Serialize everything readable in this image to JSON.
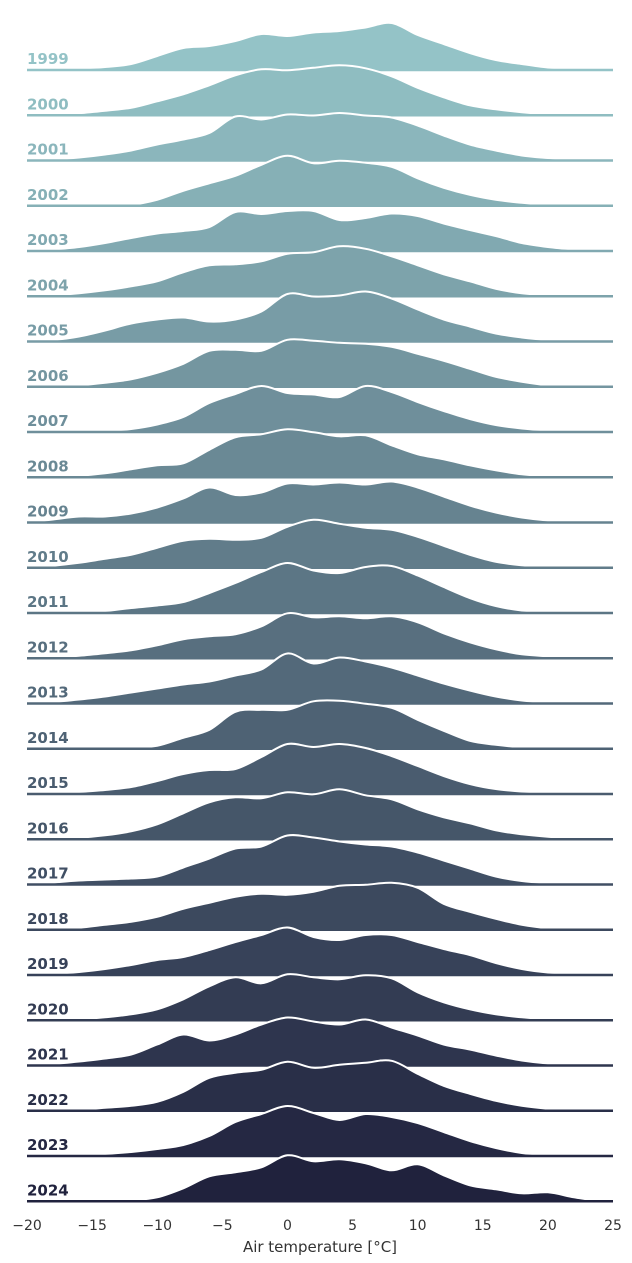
{
  "chart_data": {
    "type": "ridgeline",
    "title": "",
    "xlabel": "Air temperature [°C]",
    "ylabel": "",
    "xlim": [
      -20,
      25
    ],
    "xticks": [
      -20,
      -15,
      -10,
      -5,
      0,
      5,
      10,
      15,
      20,
      25
    ],
    "xtick_labels": [
      "−20",
      "−15",
      "−10",
      "−5",
      "0",
      "5",
      "10",
      "15",
      "20",
      "25"
    ],
    "density_x": [
      -20,
      -18,
      -16,
      -14,
      -12,
      -10,
      -8,
      -6,
      -4,
      -2,
      0,
      2,
      4,
      6,
      8,
      10,
      12,
      14,
      16,
      18,
      20,
      22,
      24
    ],
    "series": [
      {
        "name": "1999",
        "density": [
          0.0,
          0.01,
          0.03,
          0.06,
          0.12,
          0.28,
          0.44,
          0.48,
          0.58,
          0.72,
          0.68,
          0.75,
          0.78,
          0.85,
          0.94,
          0.7,
          0.52,
          0.34,
          0.2,
          0.12,
          0.05,
          0.02,
          0.0
        ]
      },
      {
        "name": "2000",
        "density": [
          0.0,
          0.01,
          0.04,
          0.09,
          0.15,
          0.28,
          0.42,
          0.6,
          0.8,
          0.92,
          0.9,
          0.95,
          1.0,
          0.94,
          0.78,
          0.55,
          0.36,
          0.2,
          0.12,
          0.06,
          0.02,
          0.01,
          0.0
        ]
      },
      {
        "name": "2001",
        "density": [
          0.0,
          0.02,
          0.06,
          0.12,
          0.2,
          0.32,
          0.42,
          0.55,
          0.88,
          0.82,
          0.92,
          0.9,
          0.95,
          0.9,
          0.86,
          0.7,
          0.5,
          0.32,
          0.2,
          0.1,
          0.05,
          0.02,
          0.0
        ]
      },
      {
        "name": "2002",
        "density": [
          0.0,
          0.0,
          0.0,
          0.0,
          0.02,
          0.12,
          0.3,
          0.45,
          0.6,
          0.82,
          1.0,
          0.85,
          0.9,
          0.86,
          0.78,
          0.55,
          0.36,
          0.22,
          0.12,
          0.06,
          0.02,
          0.01,
          0.0
        ]
      },
      {
        "name": "2003",
        "density": [
          0.0,
          0.03,
          0.08,
          0.16,
          0.26,
          0.35,
          0.4,
          0.48,
          0.78,
          0.74,
          0.8,
          0.8,
          0.62,
          0.66,
          0.75,
          0.7,
          0.55,
          0.42,
          0.3,
          0.16,
          0.08,
          0.03,
          0.0
        ]
      },
      {
        "name": "2004",
        "density": [
          0.0,
          0.02,
          0.06,
          0.12,
          0.2,
          0.3,
          0.48,
          0.62,
          0.64,
          0.7,
          0.85,
          0.88,
          1.0,
          0.95,
          0.8,
          0.62,
          0.44,
          0.3,
          0.15,
          0.06,
          0.02,
          0.0,
          0.0
        ]
      },
      {
        "name": "2005",
        "density": [
          0.0,
          0.03,
          0.1,
          0.22,
          0.36,
          0.44,
          0.48,
          0.4,
          0.44,
          0.6,
          0.95,
          0.9,
          0.92,
          1.0,
          0.86,
          0.64,
          0.44,
          0.3,
          0.16,
          0.08,
          0.03,
          0.01,
          0.0
        ]
      },
      {
        "name": "2006",
        "density": [
          0.0,
          0.01,
          0.03,
          0.08,
          0.15,
          0.28,
          0.46,
          0.72,
          0.74,
          0.72,
          0.94,
          0.92,
          0.88,
          0.86,
          0.8,
          0.66,
          0.52,
          0.36,
          0.2,
          0.1,
          0.03,
          0.0,
          0.0
        ]
      },
      {
        "name": "2007",
        "density": [
          0.0,
          0.0,
          0.0,
          0.02,
          0.06,
          0.15,
          0.3,
          0.58,
          0.76,
          0.92,
          0.78,
          0.75,
          0.7,
          0.92,
          0.8,
          0.6,
          0.42,
          0.26,
          0.14,
          0.07,
          0.03,
          0.01,
          0.0
        ]
      },
      {
        "name": "2008",
        "density": [
          0.0,
          0.01,
          0.03,
          0.08,
          0.16,
          0.24,
          0.28,
          0.55,
          0.8,
          0.86,
          0.96,
          0.9,
          0.82,
          0.84,
          0.64,
          0.46,
          0.36,
          0.24,
          0.14,
          0.06,
          0.02,
          0.0,
          0.0
        ]
      },
      {
        "name": "2009",
        "density": [
          0.0,
          0.06,
          0.12,
          0.12,
          0.18,
          0.3,
          0.48,
          0.7,
          0.55,
          0.6,
          0.78,
          0.76,
          0.8,
          0.76,
          0.82,
          0.7,
          0.52,
          0.34,
          0.2,
          0.1,
          0.04,
          0.01,
          0.0
        ]
      },
      {
        "name": "2010",
        "density": [
          0.0,
          0.04,
          0.1,
          0.18,
          0.26,
          0.4,
          0.54,
          0.58,
          0.56,
          0.6,
          0.82,
          0.96,
          0.88,
          0.8,
          0.76,
          0.62,
          0.44,
          0.26,
          0.12,
          0.05,
          0.02,
          0.0,
          0.0
        ]
      },
      {
        "name": "2011",
        "density": [
          0.0,
          0.0,
          0.02,
          0.04,
          0.1,
          0.15,
          0.22,
          0.4,
          0.6,
          0.82,
          1.0,
          0.85,
          0.8,
          0.92,
          0.94,
          0.75,
          0.52,
          0.3,
          0.14,
          0.05,
          0.02,
          0.0,
          0.0
        ]
      },
      {
        "name": "2012",
        "density": [
          0.0,
          0.02,
          0.05,
          0.1,
          0.16,
          0.26,
          0.38,
          0.44,
          0.48,
          0.64,
          0.9,
          0.82,
          0.84,
          0.8,
          0.84,
          0.72,
          0.5,
          0.32,
          0.18,
          0.08,
          0.04,
          0.01,
          0.0
        ]
      },
      {
        "name": "2013",
        "density": [
          0.0,
          0.03,
          0.08,
          0.14,
          0.22,
          0.3,
          0.38,
          0.44,
          0.56,
          0.68,
          1.0,
          0.8,
          0.92,
          0.84,
          0.72,
          0.56,
          0.4,
          0.26,
          0.14,
          0.06,
          0.02,
          0.0,
          0.0
        ]
      },
      {
        "name": "2014",
        "density": [
          0.0,
          0.0,
          0.0,
          0.01,
          0.02,
          0.06,
          0.22,
          0.38,
          0.74,
          0.78,
          0.78,
          0.95,
          0.96,
          0.9,
          0.82,
          0.58,
          0.36,
          0.16,
          0.08,
          0.03,
          0.01,
          0.0,
          0.0
        ]
      },
      {
        "name": "2015",
        "density": [
          0.0,
          0.01,
          0.04,
          0.08,
          0.14,
          0.26,
          0.4,
          0.48,
          0.5,
          0.74,
          1.0,
          0.94,
          1.0,
          0.92,
          0.76,
          0.56,
          0.36,
          0.2,
          0.1,
          0.05,
          0.02,
          0.01,
          0.0
        ]
      },
      {
        "name": "2016",
        "density": [
          0.0,
          0.01,
          0.03,
          0.08,
          0.16,
          0.3,
          0.52,
          0.74,
          0.84,
          0.82,
          0.94,
          0.9,
          1.0,
          0.88,
          0.8,
          0.6,
          0.44,
          0.32,
          0.18,
          0.1,
          0.05,
          0.02,
          0.0
        ]
      },
      {
        "name": "2017",
        "density": [
          0.0,
          0.04,
          0.08,
          0.1,
          0.12,
          0.16,
          0.34,
          0.52,
          0.72,
          0.76,
          0.98,
          0.94,
          0.86,
          0.8,
          0.76,
          0.64,
          0.48,
          0.32,
          0.16,
          0.07,
          0.03,
          0.01,
          0.0
        ]
      },
      {
        "name": "2018",
        "density": [
          0.0,
          0.01,
          0.04,
          0.1,
          0.16,
          0.26,
          0.42,
          0.54,
          0.66,
          0.72,
          0.7,
          0.76,
          0.88,
          0.9,
          0.94,
          0.84,
          0.52,
          0.36,
          0.22,
          0.1,
          0.03,
          0.0,
          0.0
        ]
      },
      {
        "name": "2019",
        "density": [
          0.0,
          0.02,
          0.06,
          0.12,
          0.2,
          0.3,
          0.36,
          0.5,
          0.66,
          0.8,
          0.95,
          0.76,
          0.7,
          0.8,
          0.8,
          0.66,
          0.52,
          0.4,
          0.24,
          0.12,
          0.05,
          0.02,
          0.0
        ]
      },
      {
        "name": "2020",
        "density": [
          0.0,
          0.0,
          0.02,
          0.06,
          0.12,
          0.22,
          0.42,
          0.68,
          0.86,
          0.74,
          0.92,
          0.86,
          0.82,
          0.9,
          0.84,
          0.56,
          0.36,
          0.22,
          0.12,
          0.06,
          0.02,
          0.0,
          0.0
        ]
      },
      {
        "name": "2021",
        "density": [
          0.0,
          0.03,
          0.08,
          0.14,
          0.22,
          0.42,
          0.62,
          0.5,
          0.62,
          0.82,
          0.96,
          0.88,
          0.82,
          0.92,
          0.76,
          0.6,
          0.42,
          0.32,
          0.2,
          0.1,
          0.04,
          0.01,
          0.0
        ]
      },
      {
        "name": "2022",
        "density": [
          0.0,
          0.0,
          0.02,
          0.06,
          0.1,
          0.18,
          0.38,
          0.66,
          0.76,
          0.82,
          0.98,
          0.86,
          0.92,
          0.96,
          1.0,
          0.74,
          0.5,
          0.34,
          0.2,
          0.1,
          0.04,
          0.01,
          0.0
        ]
      },
      {
        "name": "2023",
        "density": [
          0.0,
          0.0,
          0.01,
          0.04,
          0.08,
          0.14,
          0.22,
          0.4,
          0.68,
          0.84,
          1.0,
          0.86,
          0.72,
          0.84,
          0.78,
          0.66,
          0.48,
          0.3,
          0.16,
          0.06,
          0.02,
          0.0,
          0.0
        ]
      },
      {
        "name": "2024",
        "density": [
          0.0,
          0.0,
          0.0,
          0.0,
          0.02,
          0.08,
          0.26,
          0.5,
          0.58,
          0.68,
          0.92,
          0.8,
          0.84,
          0.76,
          0.62,
          0.74,
          0.52,
          0.32,
          0.24,
          0.16,
          0.18,
          0.08,
          0.0
        ]
      }
    ],
    "colors": {
      "first": "#94c3c7",
      "last": "#20223d",
      "outline": "#ffffff"
    },
    "grid": false,
    "legend": "none"
  }
}
